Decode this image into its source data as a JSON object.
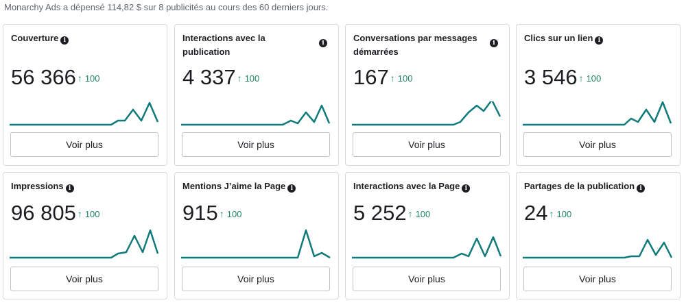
{
  "summary": "Monarchy Ads a dépensé 114,82 $ sur 8 publicités au cours des 60 derniers jours.",
  "colors": {
    "line": "#0f7a7a",
    "trend": "#1e8565",
    "border": "#d6d9dd"
  },
  "icons": {
    "info": "info-circle-icon",
    "trend": "arrow-up-icon"
  },
  "cards": [
    {
      "title": "Couverture",
      "value": "56 366",
      "arrow": "↑",
      "trend": "100",
      "button": "Voir plus"
    },
    {
      "title": "Interactions avec la publication",
      "value": "4 337",
      "arrow": "↑",
      "trend": "100",
      "button": "Voir plus"
    },
    {
      "title": "Conversations par messages démarrées",
      "value": "167",
      "arrow": "↑",
      "trend": "100",
      "button": "Voir plus"
    },
    {
      "title": "Clics sur un lien",
      "value": "3 546",
      "arrow": "↑",
      "trend": "100",
      "button": "Voir plus"
    },
    {
      "title": "Impressions",
      "value": "96 805",
      "arrow": "↑",
      "trend": "100",
      "button": "Voir plus"
    },
    {
      "title": "Mentions J’aime la Page",
      "value": "915",
      "arrow": "↑",
      "trend": "100",
      "button": "Voir plus"
    },
    {
      "title": "Interactions avec la Page",
      "value": "5 252",
      "arrow": "↑",
      "trend": "100",
      "button": "Voir plus"
    },
    {
      "title": "Partages de la publication",
      "value": "24",
      "arrow": "↑",
      "trend": "100",
      "button": "Voir plus"
    }
  ]
}
